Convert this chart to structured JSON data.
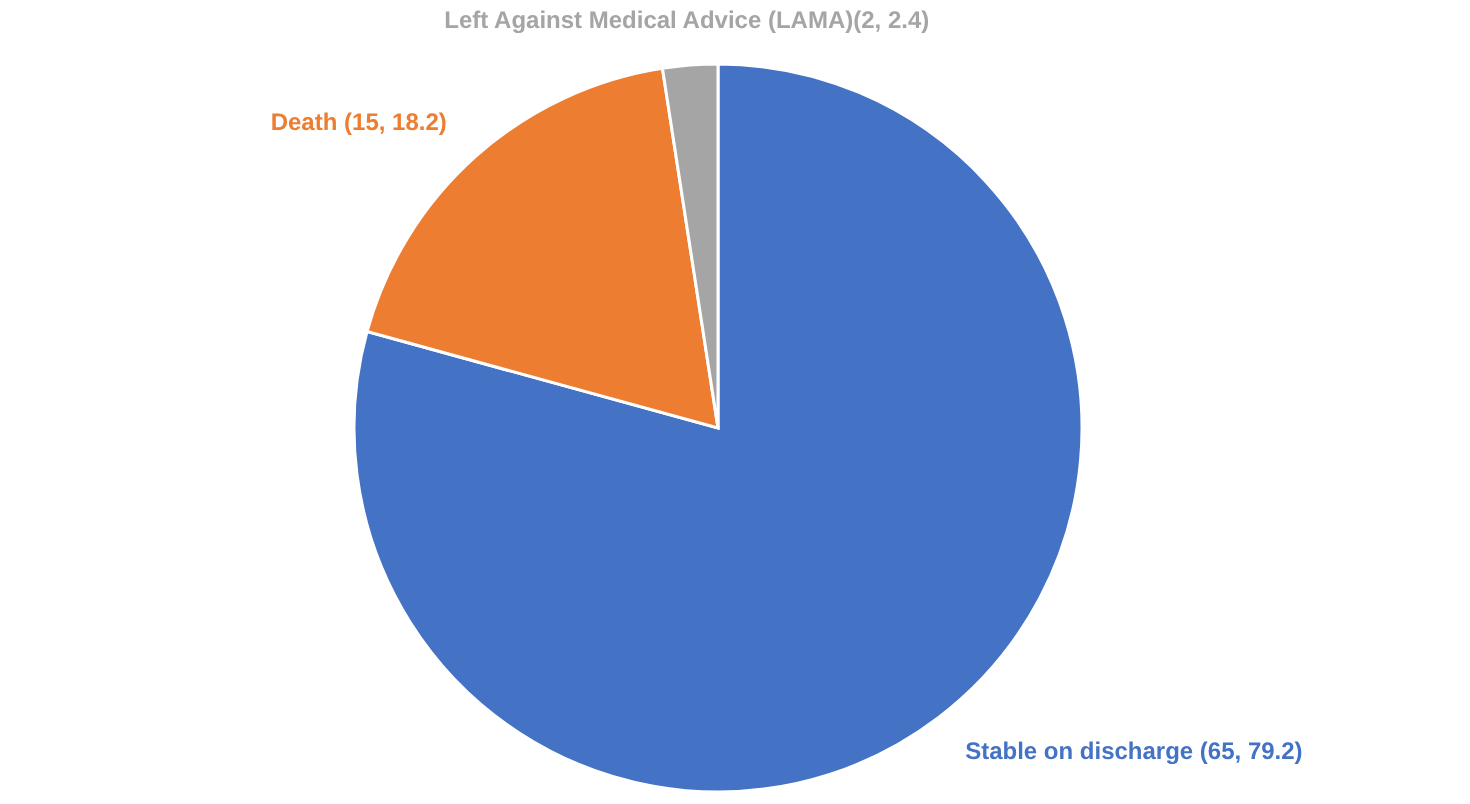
{
  "chart_data": {
    "type": "pie",
    "categories": [
      "Stable on discharge  (65, 79.2)",
      "Death (15, 18.2)",
      "Left Against Medical Advice (LAMA)(2, 2.4)"
    ],
    "values": [
      65,
      15,
      2
    ],
    "colors": [
      "#4472c4",
      "#ed7d31",
      "#a5a5a5"
    ]
  }
}
